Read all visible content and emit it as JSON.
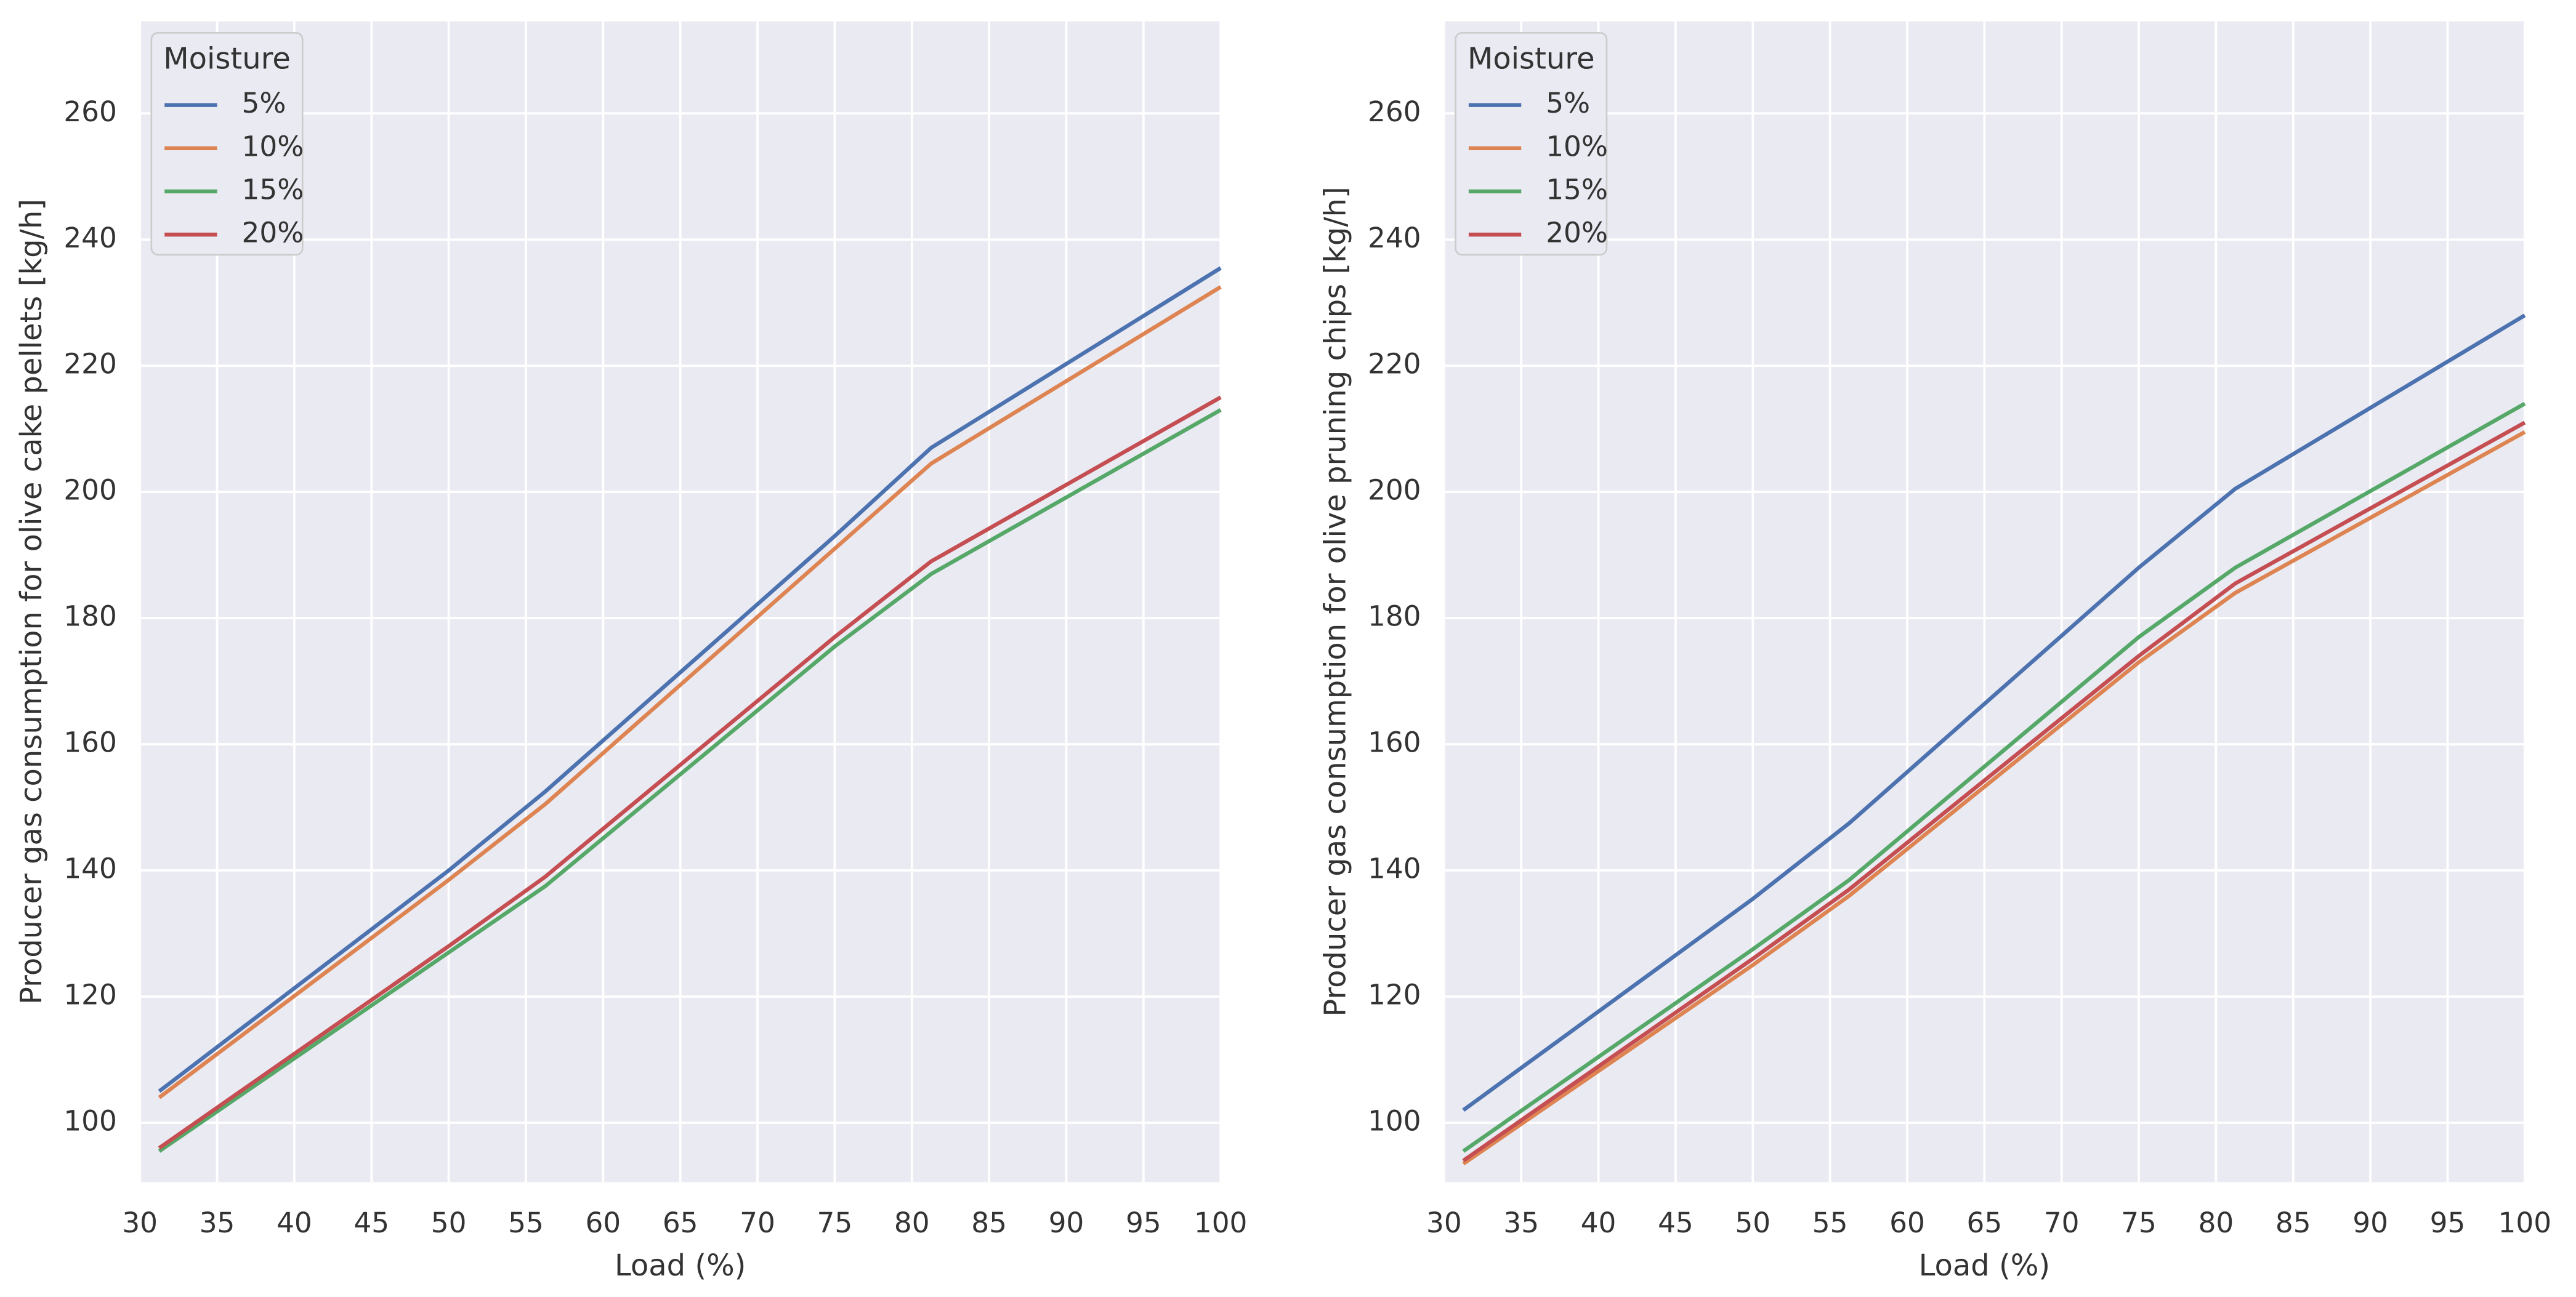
{
  "chart_data": [
    {
      "type": "line",
      "ylabel": "Producer gas consumption for olive cake pellets [kg/h]",
      "xlabel": "Load (%)",
      "legend_title": "Moisture",
      "legend": "upper left",
      "grid": true,
      "x": [
        31.25,
        50,
        56.25,
        75,
        81.25,
        100
      ],
      "series": [
        {
          "name": "5%",
          "color": "#4c72b0",
          "values": [
            105,
            140,
            152.5,
            193,
            207,
            235.5
          ]
        },
        {
          "name": "10%",
          "color": "#dd8452",
          "values": [
            104,
            138.5,
            150.5,
            191,
            204.5,
            232.5
          ]
        },
        {
          "name": "15%",
          "color": "#55a868",
          "values": [
            95.5,
            127,
            137.5,
            175.5,
            187,
            213
          ]
        },
        {
          "name": "20%",
          "color": "#c44e52",
          "values": [
            96,
            128,
            139,
            177,
            189,
            215
          ]
        }
      ],
      "xlim": [
        30,
        100
      ],
      "xticks": [
        30,
        35,
        40,
        45,
        50,
        55,
        60,
        65,
        70,
        75,
        80,
        85,
        90,
        95,
        100
      ],
      "ylim": [
        90.6,
        274.6
      ],
      "yticks": [
        100,
        120,
        140,
        160,
        180,
        200,
        220,
        240,
        260
      ]
    },
    {
      "type": "line",
      "ylabel": "Producer gas consumption for olive pruning chips [kg/h]",
      "xlabel": "Load (%)",
      "legend_title": "Moisture",
      "legend": "upper left",
      "grid": true,
      "x": [
        31.25,
        50,
        56.25,
        75,
        81.25,
        100
      ],
      "series": [
        {
          "name": "5%",
          "color": "#4c72b0",
          "values": [
            102,
            135.5,
            147.5,
            188,
            200.5,
            228
          ]
        },
        {
          "name": "10%",
          "color": "#dd8452",
          "values": [
            93.5,
            125,
            136,
            173,
            184,
            209.5
          ]
        },
        {
          "name": "15%",
          "color": "#55a868",
          "values": [
            95.5,
            127.5,
            138.5,
            177,
            188,
            214
          ]
        },
        {
          "name": "20%",
          "color": "#c44e52",
          "values": [
            94,
            126,
            137,
            174,
            185.5,
            211
          ]
        }
      ],
      "xlim": [
        30,
        100
      ],
      "xticks": [
        30,
        35,
        40,
        45,
        50,
        55,
        60,
        65,
        70,
        75,
        80,
        85,
        90,
        95,
        100
      ],
      "ylim": [
        90.6,
        274.6
      ],
      "yticks": [
        100,
        120,
        140,
        160,
        180,
        200,
        220,
        240,
        260
      ]
    }
  ]
}
